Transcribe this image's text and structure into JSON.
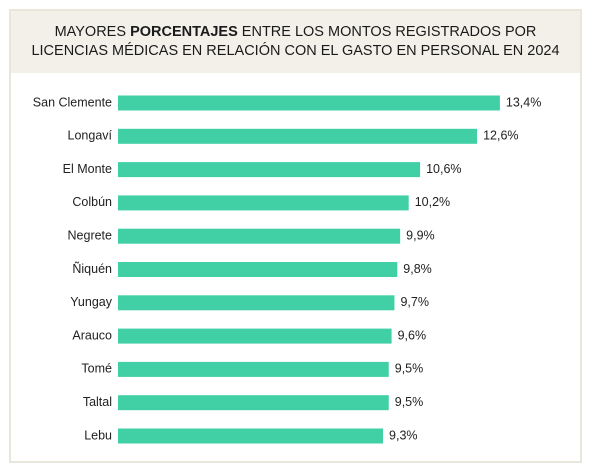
{
  "chart_data": {
    "type": "bar",
    "orientation": "horizontal",
    "title": {
      "line1_start": "MAYORES",
      "line1_bold": "PORCENTAJES",
      "line1_end": "ENTRE LOS MONTOS REGISTRADOS POR",
      "line2": "LICENCIAS MÉDICAS EN RELACIÓN CON EL GASTO EN PERSONAL EN 2024"
    },
    "categories": [
      "San Clemente",
      "Longaví",
      "El Monte",
      "Colbún",
      "Negrete",
      "Ñiquén",
      "Yungay",
      "Arauco",
      "Tomé",
      "Taltal",
      "Lebu"
    ],
    "values": [
      13.4,
      12.6,
      10.6,
      10.2,
      9.9,
      9.8,
      9.7,
      9.6,
      9.5,
      9.5,
      9.3
    ],
    "value_labels": [
      "13,4%",
      "12,6%",
      "10,6%",
      "10,2%",
      "9,9%",
      "9,8%",
      "9,7%",
      "9,6%",
      "9,5%",
      "9,5%",
      "9,3%"
    ],
    "color": "#41d0a5"
  }
}
